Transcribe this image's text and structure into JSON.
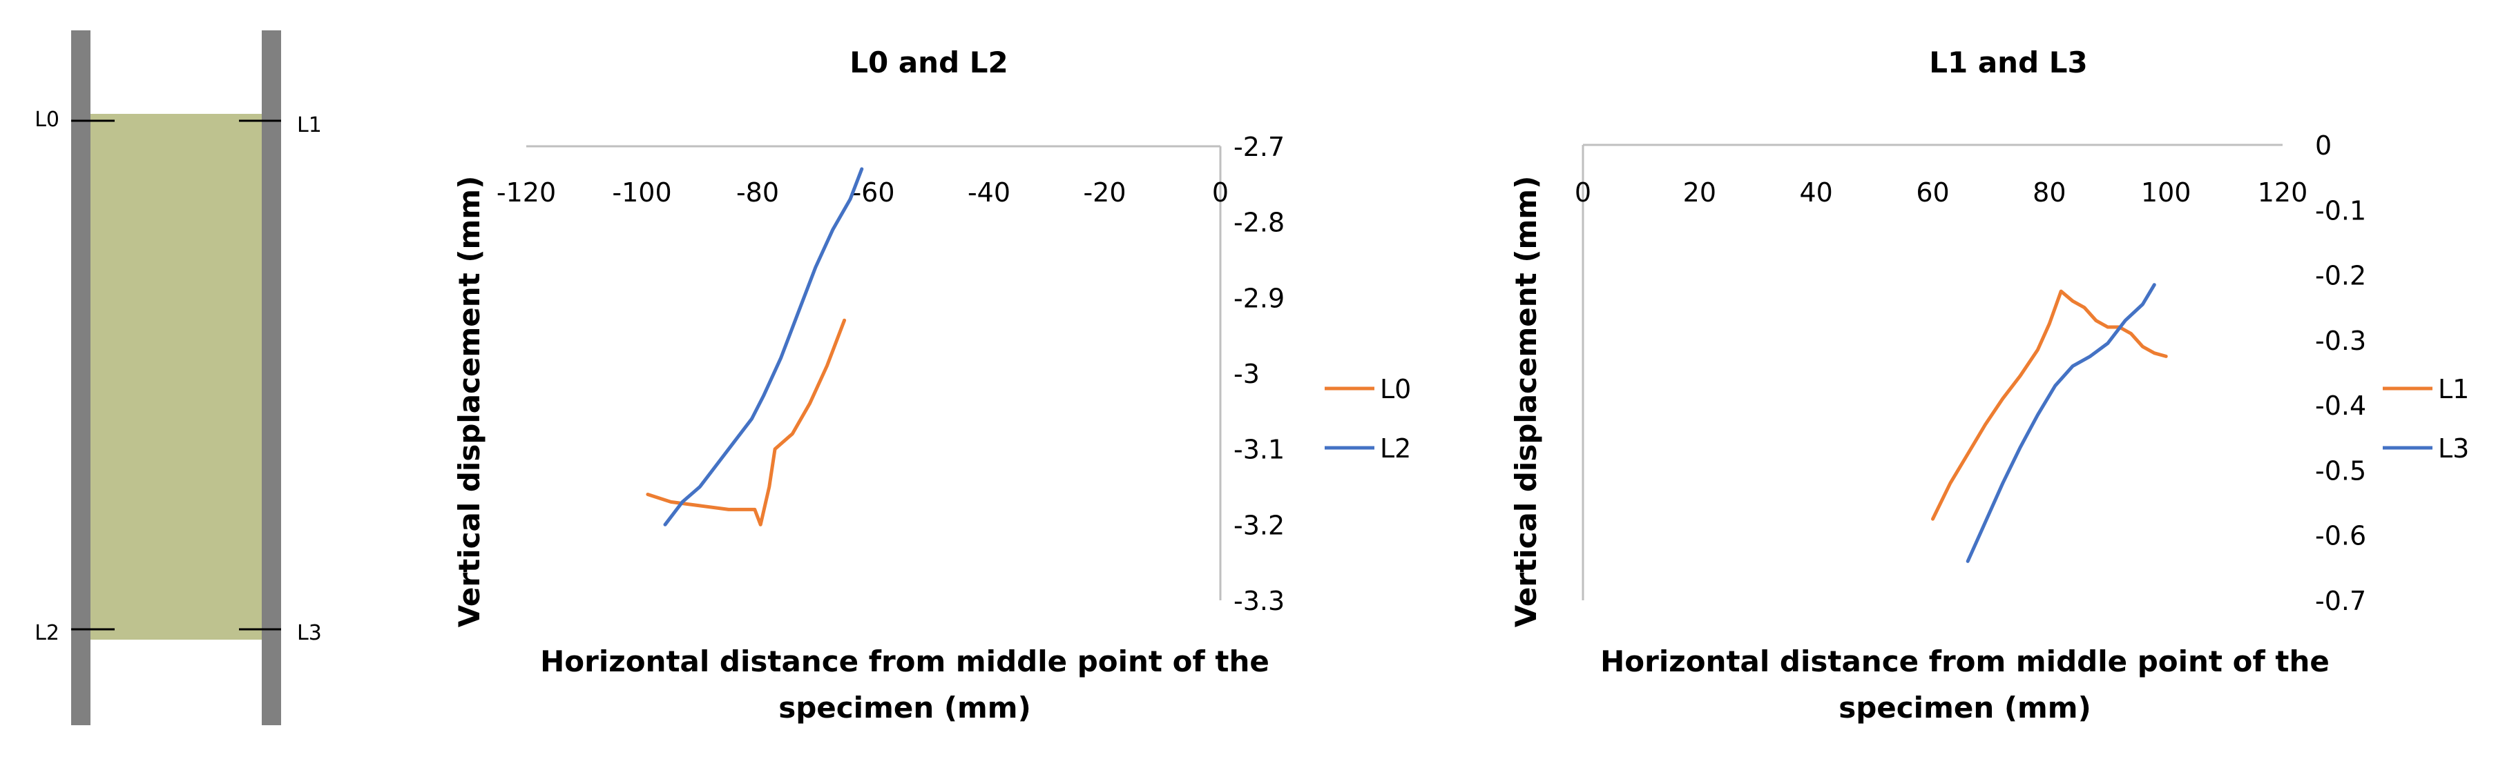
{
  "specimen": {
    "fill_color": "#bec28f",
    "bar_color": "#808080",
    "labels": [
      "L0",
      "L1",
      "L2",
      "L3"
    ]
  },
  "chart_data": [
    {
      "type": "line",
      "title": "L0 and L2",
      "xlabel": "Horizontal distance from middle point of the specimen (mm)",
      "xlabel_lines": [
        "Horizontal distance from middle point of the",
        "specimen (mm)"
      ],
      "ylabel": "Vertical displacement (mm)",
      "xlim": [
        -120,
        0
      ],
      "ylim": [
        -3.3,
        -2.7
      ],
      "xticks": [
        -120,
        -100,
        -80,
        -60,
        -40,
        -20,
        0
      ],
      "yticks": [
        -2.7,
        -2.8,
        -2.9,
        -3.0,
        -3.1,
        -3.2,
        -3.3
      ],
      "xtick_labels": [
        "-120",
        "-100",
        "-80",
        "-60",
        "-40",
        "-20",
        "0"
      ],
      "ytick_labels": [
        "-2.7",
        "-2.8",
        "-2.9",
        "-3",
        "-3.1",
        "-3.2",
        "-3.3"
      ],
      "grid": false,
      "legend_position": "right",
      "series": [
        {
          "name": "L0",
          "color": "#ed7d31",
          "points": [
            [
              -99,
              -3.16
            ],
            [
              -95,
              -3.17
            ],
            [
              -90,
              -3.175
            ],
            [
              -85,
              -3.18
            ],
            [
              -82,
              -3.18
            ],
            [
              -80.5,
              -3.18
            ],
            [
              -79.5,
              -3.2
            ],
            [
              -78,
              -3.15
            ],
            [
              -77,
              -3.1
            ],
            [
              -74,
              -3.08
            ],
            [
              -71,
              -3.04
            ],
            [
              -68,
              -2.99
            ],
            [
              -65,
              -2.93
            ]
          ]
        },
        {
          "name": "L2",
          "color": "#4472c4",
          "points": [
            [
              -96,
              -3.2
            ],
            [
              -93,
              -3.17
            ],
            [
              -90,
              -3.15
            ],
            [
              -87,
              -3.12
            ],
            [
              -84,
              -3.09
            ],
            [
              -81,
              -3.06
            ],
            [
              -79,
              -3.03
            ],
            [
              -76,
              -2.98
            ],
            [
              -73,
              -2.92
            ],
            [
              -70,
              -2.86
            ],
            [
              -67,
              -2.81
            ],
            [
              -64,
              -2.77
            ],
            [
              -62,
              -2.73
            ]
          ]
        }
      ]
    },
    {
      "type": "line",
      "title": "L1 and L3",
      "xlabel": "Horizontal distance from middle point of the specimen (mm)",
      "xlabel_lines": [
        "Horizontal distance from middle point of the",
        "specimen (mm)"
      ],
      "ylabel": "Vertical displacement (mm)",
      "xlim": [
        0,
        120
      ],
      "ylim": [
        -0.7,
        0
      ],
      "xticks": [
        0,
        20,
        40,
        60,
        80,
        100,
        120
      ],
      "yticks": [
        0,
        -0.1,
        -0.2,
        -0.3,
        -0.4,
        -0.5,
        -0.6,
        -0.7
      ],
      "xtick_labels": [
        "0",
        "20",
        "40",
        "60",
        "80",
        "100",
        "120"
      ],
      "ytick_labels": [
        "0",
        "-0.1",
        "-0.2",
        "-0.3",
        "-0.4",
        "-0.5",
        "-0.6",
        "-0.7"
      ],
      "grid": false,
      "legend_position": "right",
      "series": [
        {
          "name": "L1",
          "color": "#ed7d31",
          "points": [
            [
              60,
              -0.575
            ],
            [
              63,
              -0.52
            ],
            [
              66,
              -0.475
            ],
            [
              69,
              -0.43
            ],
            [
              72,
              -0.39
            ],
            [
              75,
              -0.355
            ],
            [
              78,
              -0.315
            ],
            [
              80,
              -0.275
            ],
            [
              82,
              -0.225
            ],
            [
              84,
              -0.24
            ],
            [
              86,
              -0.25
            ],
            [
              88,
              -0.27
            ],
            [
              90,
              -0.28
            ],
            [
              92,
              -0.28
            ],
            [
              94,
              -0.29
            ],
            [
              96,
              -0.31
            ],
            [
              98,
              -0.32
            ],
            [
              100,
              -0.325
            ]
          ]
        },
        {
          "name": "L3",
          "color": "#4472c4",
          "points": [
            [
              66,
              -0.64
            ],
            [
              69,
              -0.58
            ],
            [
              72,
              -0.52
            ],
            [
              75,
              -0.465
            ],
            [
              78,
              -0.415
            ],
            [
              81,
              -0.37
            ],
            [
              84,
              -0.34
            ],
            [
              87,
              -0.325
            ],
            [
              90,
              -0.305
            ],
            [
              93,
              -0.27
            ],
            [
              96,
              -0.245
            ],
            [
              98,
              -0.215
            ]
          ]
        }
      ]
    }
  ]
}
